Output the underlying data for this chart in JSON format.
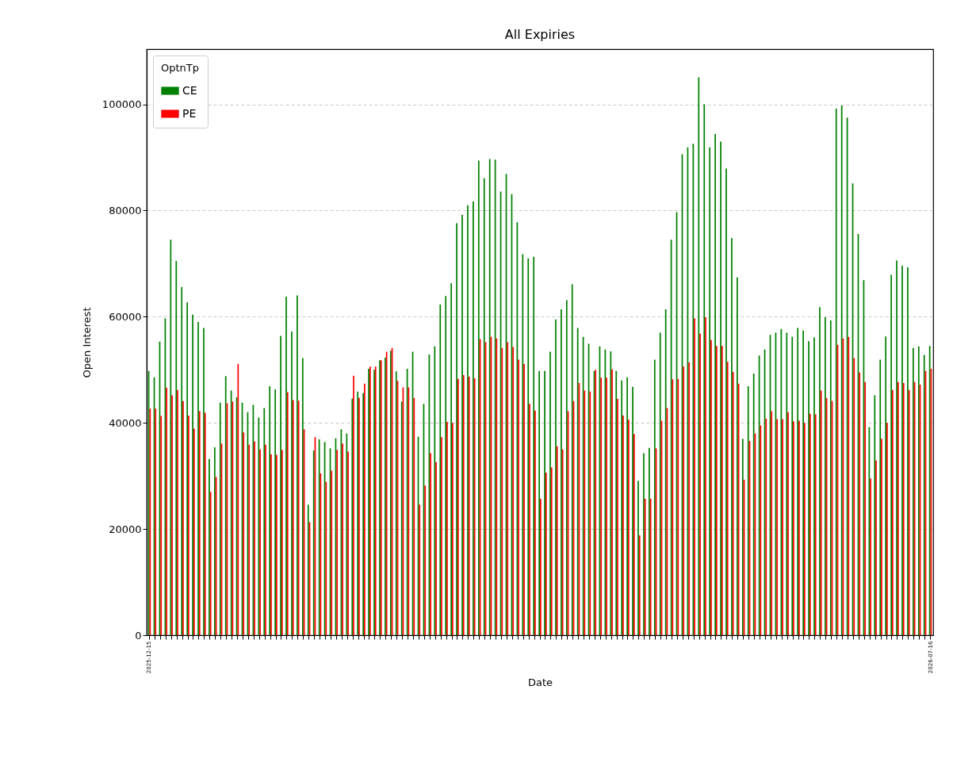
{
  "chart_data": {
    "type": "bar",
    "title": "All Expiries",
    "xlabel": "Date",
    "ylabel": "Open Interest",
    "legend_title": "OptnTp",
    "legend": "top left",
    "grid": "y",
    "categories": [
      "2025-12-15",
      null,
      null,
      null,
      null,
      null,
      null,
      null,
      null,
      null,
      null,
      null,
      null,
      null,
      null,
      null,
      null,
      null,
      null,
      null,
      null,
      null,
      null,
      null,
      null,
      null,
      null,
      null,
      null,
      null,
      null,
      null,
      null,
      null,
      null,
      null,
      null,
      null,
      null,
      null,
      null,
      null,
      null,
      null,
      null,
      null,
      null,
      null,
      null,
      null,
      null,
      null,
      null,
      null,
      null,
      null,
      null,
      null,
      null,
      null,
      null,
      null,
      null,
      null,
      null,
      null,
      null,
      null,
      null,
      null,
      null,
      null,
      null,
      null,
      null,
      null,
      null,
      null,
      null,
      null,
      null,
      null,
      null,
      null,
      null,
      null,
      null,
      null,
      null,
      null,
      null,
      null,
      null,
      null,
      null,
      null,
      null,
      null,
      null,
      null,
      null,
      null,
      null,
      null,
      null,
      null,
      null,
      null,
      null,
      null,
      null,
      null,
      null,
      null,
      null,
      null,
      null,
      null,
      null,
      null,
      null,
      null,
      null,
      null,
      null,
      null,
      null,
      null,
      null,
      null,
      null,
      null,
      null,
      null,
      null,
      null,
      null,
      null,
      null,
      null,
      null,
      null,
      "2026-07-16"
    ],
    "ylim": [
      0,
      110400
    ],
    "yticks": [
      0,
      20000,
      40000,
      60000,
      80000,
      100000
    ],
    "series": [
      {
        "name": "CE",
        "color": "#008000",
        "values": [
          49800,
          48600,
          55300,
          59700,
          74500,
          70500,
          65600,
          62700,
          60400,
          59000,
          57900,
          33200,
          35400,
          43800,
          48800,
          46100,
          44800,
          43800,
          42000,
          43400,
          41000,
          42800,
          46900,
          46300,
          56400,
          63800,
          57200,
          64000,
          52200,
          24600,
          34800,
          36900,
          36400,
          35200,
          37100,
          38800,
          38000,
          44600,
          45900,
          45600,
          50200,
          50000,
          51800,
          52300,
          53600,
          49700,
          44000,
          50200,
          53400,
          37400,
          43600,
          52900,
          54400,
          62300,
          63900,
          66300,
          77600,
          79200,
          81000,
          81700,
          89400,
          86100,
          89700,
          89600,
          83600,
          86900,
          83100,
          77800,
          71800,
          71000,
          71300,
          49800,
          49800,
          53400,
          59500,
          61400,
          63100,
          66100,
          57900,
          56200,
          54900,
          49800,
          54400,
          53800,
          53500,
          49800,
          48000,
          48600,
          46800,
          29100,
          34300,
          35300,
          51900,
          57000,
          61400,
          74500,
          79700,
          90600,
          91900,
          92600,
          105100,
          100000,
          91900,
          94400,
          93000,
          87900,
          74800,
          67400,
          37000,
          46900,
          49300,
          52700,
          53800,
          56600,
          57000,
          57700,
          57000,
          56200,
          57900,
          57400,
          55400,
          56100,
          61800,
          59900,
          59300,
          99200,
          99800,
          97500,
          85100,
          75600,
          66900,
          39200,
          45200,
          51900,
          56300,
          67900,
          70600,
          69600,
          69300,
          54100,
          54400,
          52800,
          54500
        ]
      },
      {
        "name": "PE",
        "color": "#ff0000",
        "values": [
          42700,
          42700,
          41300,
          46600,
          45200,
          46200,
          44100,
          41400,
          38900,
          42200,
          41900,
          27000,
          29800,
          36100,
          43700,
          44000,
          51100,
          38200,
          35900,
          36500,
          35000,
          35900,
          34100,
          34000,
          34900,
          45800,
          44300,
          44200,
          38800,
          21300,
          37300,
          30500,
          28900,
          31000,
          34900,
          36100,
          34600,
          48900,
          44700,
          47400,
          50600,
          50600,
          51800,
          53400,
          54100,
          47900,
          46700,
          46700,
          44700,
          24600,
          28200,
          34300,
          32600,
          37300,
          40200,
          40000,
          48300,
          49000,
          48700,
          48400,
          55800,
          55200,
          56200,
          55900,
          54100,
          55200,
          54300,
          51900,
          51100,
          43600,
          42300,
          25700,
          30600,
          31600,
          35600,
          35000,
          42200,
          44100,
          47500,
          46100,
          45900,
          50000,
          48500,
          48500,
          50100,
          44500,
          41400,
          40600,
          37900,
          18800,
          25700,
          25700,
          35200,
          40400,
          42800,
          48200,
          48300,
          50600,
          51400,
          59700,
          56800,
          59900,
          55600,
          54500,
          54500,
          51500,
          49600,
          47400,
          29300,
          36600,
          38000,
          39500,
          40800,
          42200,
          40700,
          40700,
          42000,
          40300,
          40400,
          40000,
          41700,
          41600,
          46100,
          44700,
          44100,
          54700,
          55900,
          56200,
          52200,
          49500,
          47700,
          29500,
          32900,
          37000,
          40000,
          46200,
          47700,
          47500,
          46200,
          47700,
          47200,
          49800,
          50200
        ]
      }
    ]
  }
}
